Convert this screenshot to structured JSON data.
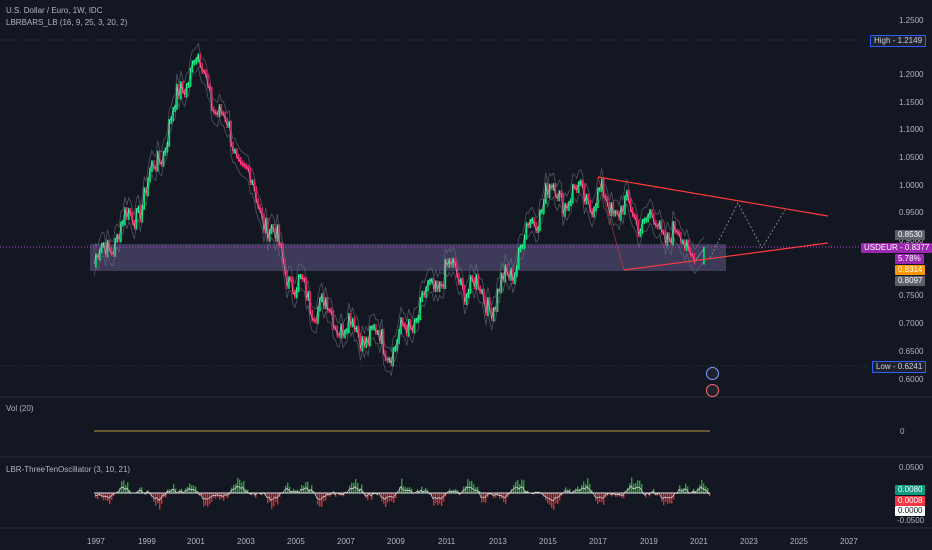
{
  "header": {
    "title": "U.S. Dollar / Euro, 1W, IDC",
    "indicator": "LBRBARS_LB (16, 9, 25, 3, 20, 2)"
  },
  "panes": {
    "volume": {
      "label": "Vol (20)",
      "value": "0"
    },
    "oscillator": {
      "label": "LBR-ThreeTenOscillator (3, 10, 21)"
    }
  },
  "price_axis": {
    "ticks": [
      "1.2500",
      "1.2000",
      "1.1500",
      "1.1000",
      "1.0500",
      "1.0000",
      "0.9500",
      "0.9000",
      "0.7500",
      "0.7000",
      "0.6500",
      "0.6000"
    ],
    "high": {
      "label": "High",
      "value": "1.2149"
    },
    "low": {
      "label": "Low",
      "value": "0.6241"
    },
    "symbol": {
      "name": "USDEUR",
      "value": "0.8377"
    },
    "tags": {
      "upper": "0.8530",
      "pct": "5.78%",
      "orange": "0.8314",
      "lower": "0.8097"
    }
  },
  "osc_axis": {
    "ticks": [
      "0.0500",
      "-0.0500"
    ],
    "tags": {
      "green": "0.0080",
      "red": "0.0008",
      "white": "0.0000"
    }
  },
  "time_axis": {
    "ticks": [
      "1997",
      "1999",
      "2001",
      "2003",
      "2005",
      "2007",
      "2009",
      "2011",
      "2013",
      "2015",
      "2017",
      "2019",
      "2021",
      "2023",
      "2025",
      "2027"
    ]
  },
  "colors": {
    "background": "#131722",
    "up": "#00e676",
    "down": "#e91e63",
    "accent": "#ff3b3b",
    "zone": "#8e7cc3",
    "symbol": "#9c27b0",
    "orange": "#ff9800"
  },
  "chart_data": {
    "type": "line",
    "x": [
      "1997",
      "1999",
      "2001",
      "2003",
      "2005",
      "2007",
      "2009",
      "2011",
      "2013",
      "2015",
      "2017",
      "2019",
      "2021"
    ],
    "series": [
      {
        "values": [
          0.81,
          0.93,
          1.19,
          0.98,
          0.77,
          0.7,
          0.66,
          0.8,
          0.74,
          0.94,
          0.93,
          0.89,
          0.8377
        ]
      }
    ],
    "ylim": [
      0.58,
      1.26
    ],
    "grid": false
  }
}
